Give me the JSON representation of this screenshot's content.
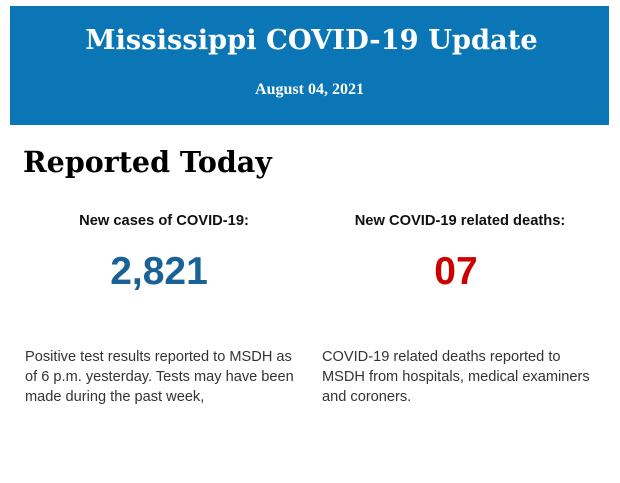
{
  "header": {
    "title": "Mississippi COVID-19 Update",
    "date": "August 04, 2021",
    "background_color": "#0a76b6",
    "text_color": "#ffffff"
  },
  "main": {
    "heading": "Reported Today",
    "stats": [
      {
        "label": "New cases of COVID-19:",
        "value": "2,821",
        "value_color": "#1a6295",
        "description": "Positive test results reported to MSDH as of 6 p.m. yesterday. Tests may have been made during the past week,"
      },
      {
        "label": "New COVID-19 related deaths:",
        "value": "07",
        "value_color": "#cc0000",
        "description": "COVID-19 related deaths reported to MSDH from hospitals, medical examiners and coroners."
      }
    ]
  }
}
